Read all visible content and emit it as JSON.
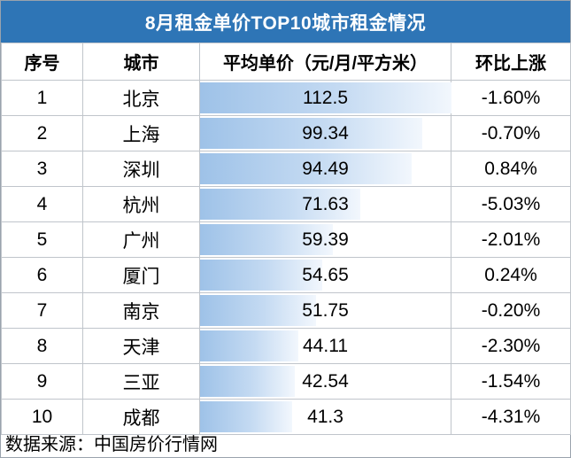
{
  "title": "8月租金单价TOP10城市租金情况",
  "headers": {
    "rank": "序号",
    "city": "城市",
    "price": "平均单价（元/月/平方米）",
    "change": "环比上涨"
  },
  "rows": [
    {
      "rank": "1",
      "city": "北京",
      "price": "112.5",
      "change": "-1.60%"
    },
    {
      "rank": "2",
      "city": "上海",
      "price": "99.34",
      "change": "-0.70%"
    },
    {
      "rank": "3",
      "city": "深圳",
      "price": "94.49",
      "change": "0.84%"
    },
    {
      "rank": "4",
      "city": "杭州",
      "price": "71.63",
      "change": "-5.03%"
    },
    {
      "rank": "5",
      "city": "广州",
      "price": "59.39",
      "change": "-2.01%"
    },
    {
      "rank": "6",
      "city": "厦门",
      "price": "54.65",
      "change": "0.24%"
    },
    {
      "rank": "7",
      "city": "南京",
      "price": "51.75",
      "change": "-0.20%"
    },
    {
      "rank": "8",
      "city": "天津",
      "price": "44.11",
      "change": "-2.30%"
    },
    {
      "rank": "9",
      "city": "三亚",
      "price": "42.54",
      "change": "-1.54%"
    },
    {
      "rank": "10",
      "city": "成都",
      "price": "41.3",
      "change": "-4.31%"
    }
  ],
  "source": "数据来源：中国房价行情网",
  "colors": {
    "title_bg": "#2e75b6",
    "bar_start": "#9ec2e8",
    "bar_end": "#f2f7fd"
  }
}
